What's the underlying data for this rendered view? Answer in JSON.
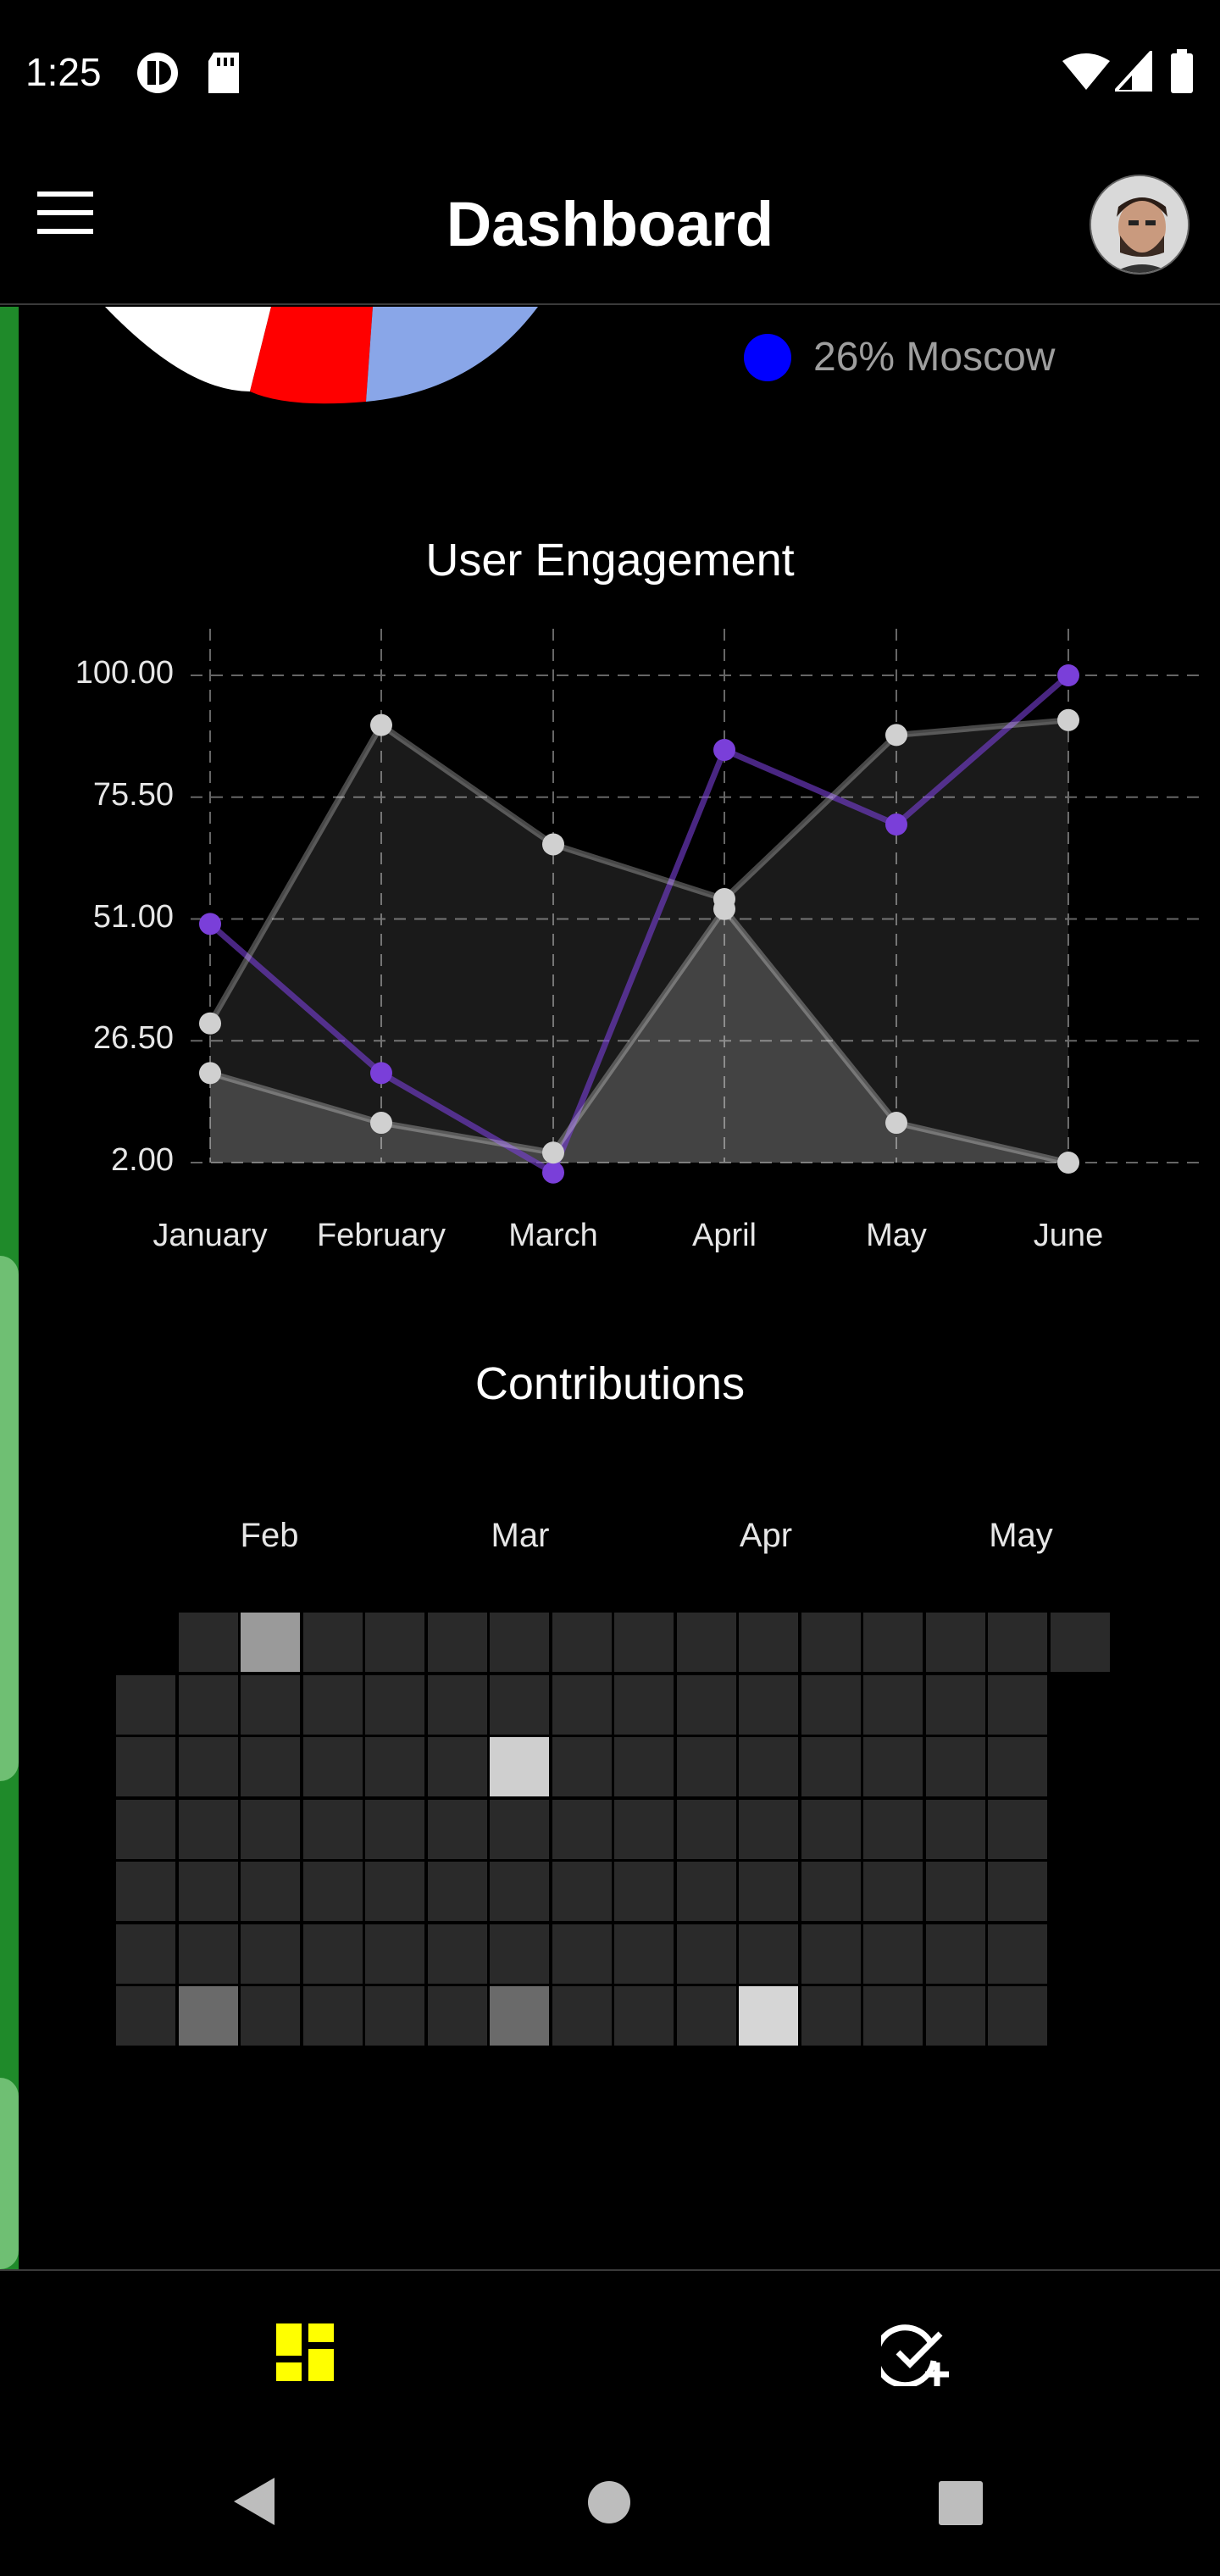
{
  "status": {
    "time": "1:25"
  },
  "header": {
    "title": "Dashboard"
  },
  "pie_legend": {
    "label": "26% Moscow",
    "color": "#0000ff"
  },
  "engagement": {
    "title": "User Engagement",
    "chart_data": {
      "type": "line",
      "categories": [
        "January",
        "February",
        "March",
        "April",
        "May",
        "June"
      ],
      "y_ticks": [
        "100.00",
        "75.50",
        "51.00",
        "26.50",
        "2.00"
      ],
      "ylim": [
        2,
        100
      ],
      "series": [
        {
          "color": "#7a3fd9",
          "values": [
            50,
            20,
            0,
            85,
            70,
            100
          ]
        },
        {
          "color": "#d0d0d0",
          "values": [
            30,
            90,
            66,
            55,
            88,
            91
          ]
        },
        {
          "color": "#d0d0d0",
          "values": [
            20,
            10,
            4,
            53,
            10,
            2
          ]
        }
      ]
    }
  },
  "contributions": {
    "title": "Contributions",
    "months": [
      "Feb",
      "Mar",
      "Apr",
      "May"
    ],
    "grid": {
      "rows": 7,
      "first_row_start_col": 1,
      "first_row_cols": 16,
      "other_rows_cols": 15,
      "highlights": [
        {
          "row": 0,
          "col": 2,
          "color": "#9a9a9a"
        },
        {
          "row": 2,
          "col": 6,
          "color": "#cfcfcf"
        },
        {
          "row": 6,
          "col": 1,
          "color": "#6a6a6a"
        },
        {
          "row": 6,
          "col": 6,
          "color": "#6a6a6a"
        },
        {
          "row": 6,
          "col": 10,
          "color": "#d6d6d6"
        }
      ]
    }
  },
  "bottom_nav": {
    "dashboard_color": "#ffff00",
    "items": [
      "dashboard-icon",
      "add-task-icon"
    ]
  },
  "system_nav": [
    "back-icon",
    "home-icon",
    "recents-icon"
  ]
}
